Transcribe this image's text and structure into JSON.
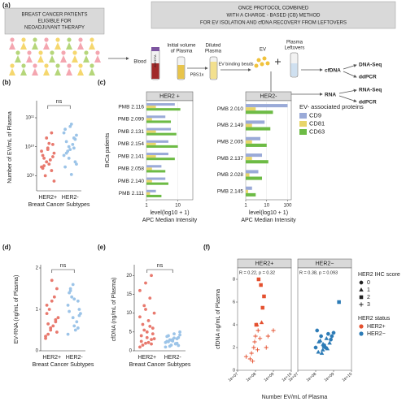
{
  "diagram": {
    "panel": "(a)",
    "patients_box": [
      "BREAST CANCER PATIENTS",
      "ELIGIBLE FOR",
      "NEOADJUVANT THERAPY"
    ],
    "protocol_box": [
      "ONCE PROTOCOL COMBINED",
      "WITH A CHARGE - BASED (CB) METHOD",
      "FOR EV ISOLATION AND cfDNA RECOVERY FROM LEFTOVERS"
    ],
    "tube_code": "K2EDTA",
    "labels": {
      "blood": "Blood",
      "plasma": [
        "Initial volume",
        "of Plasma"
      ],
      "diluted": [
        "Diluted",
        "Plasma"
      ],
      "pbs": "PBS1x",
      "beads": "EV binding beads",
      "ev": "EV",
      "leftovers": [
        "Plasma",
        "Leftovers"
      ]
    },
    "outputs": {
      "cfdna": "cfDNA",
      "dna_seq": "DNA-Seq",
      "ddpcr_dna": "ddPCR",
      "rna": "RNA",
      "rna_seq": "RNA-Seq",
      "ddpcr_rna": "ddPCR"
    }
  },
  "chart_data": [
    {
      "type": "strip",
      "panel": "(b)",
      "ylabel": "Number of EV/mL of Plasma",
      "xlabel": "Breast Cancer Subtypes",
      "annotation": "ns",
      "log_y": true,
      "categories": [
        "HER2+",
        "HER2-"
      ],
      "groups": [
        {
          "color": "#e8796e",
          "values": [
            2000000000.0,
            3000000000.0,
            1500000000.0,
            5000000000.0,
            8000000000.0,
            12000000000.0,
            4000000000.0,
            2500000000.0,
            6000000000.0,
            1000000000.0,
            3500000000.0,
            7000000000.0,
            20000000000.0,
            30000000000.0,
            1800000000.0,
            9000000000.0,
            4500000000.0,
            2200000000.0,
            13000000000.0,
            650000000.0
          ]
        },
        {
          "color": "#9cc4e8",
          "values": [
            5000000000.0,
            10000000000.0,
            20000000000.0,
            40000000000.0,
            8000000000.0,
            3000000000.0,
            15000000000.0,
            60000000000.0,
            2500000000.0,
            7000000000.0,
            12000000000.0,
            30000000000.0,
            4000000000.0,
            9000000000.0,
            2000000000.0,
            50000000000.0,
            18000000000.0,
            6000000000.0,
            1100000000.0,
            25000000000.0
          ]
        }
      ],
      "ylim": [
        300000000.0,
        300000000000.0
      ],
      "yticks": [
        {
          "value": 1000000000.0,
          "label": "10⁹"
        },
        {
          "value": 10000000000.0,
          "label": "10¹⁰"
        },
        {
          "value": 100000000000.0,
          "label": "10¹¹"
        }
      ]
    },
    {
      "type": "barh",
      "panel": "(c)",
      "ylabel": "BrCa patients",
      "xlabel": "level(log10 + 1)",
      "xlabel2": "APC Median Intensity",
      "legend_title": "EV- associated proteins",
      "log_x": true,
      "facets": [
        {
          "title": "HER2 +",
          "categories": [
            "PMB 2.116",
            "PMB 2.099",
            "PMB 2.131",
            "PMB 2.154",
            "PMB 2.141",
            "PMB 2.058",
            "PMB 2.140",
            "PMB 2.111"
          ],
          "xlim": [
            1,
            30
          ],
          "xticks": [
            1,
            10
          ],
          "series": [
            {
              "name": "CD9",
              "color": "#9aaad8",
              "values": [
                8,
                4,
                6,
                5,
                5,
                3,
                4,
                2
              ]
            },
            {
              "name": "CD81",
              "color": "#e8d56a",
              "values": [
                2,
                1.5,
                2,
                2,
                2,
                1.5,
                1.5,
                1.3
              ]
            },
            {
              "name": "CD63",
              "color": "#6dbb45",
              "values": [
                12,
                6,
                9,
                10,
                8,
                4,
                5,
                3
              ]
            }
          ]
        },
        {
          "title": "HER2-",
          "categories": [
            "PMB 2.010",
            "PMB 2.149",
            "PMB 2.005",
            "PMB 2.137",
            "PMB 2.028",
            "PMB 2.145"
          ],
          "xlim": [
            1,
            150
          ],
          "xticks": [
            1,
            10,
            100
          ],
          "series": [
            {
              "name": "CD9",
              "color": "#9aaad8",
              "values": [
                100,
                8,
                5,
                6,
                4,
                2
              ]
            },
            {
              "name": "CD81",
              "color": "#e8d56a",
              "values": [
                3,
                2,
                2,
                2,
                1.5,
                1.3
              ]
            },
            {
              "name": "CD63",
              "color": "#6dbb45",
              "values": [
                20,
                15,
                10,
                12,
                6,
                3
              ]
            }
          ]
        }
      ]
    },
    {
      "type": "strip",
      "panel": "(d)",
      "ylabel": "EV-RNA (ng/mL of Plasma)",
      "xlabel": "Breast Cancer Subtypes",
      "annotation": "ns",
      "log_y": false,
      "categories": [
        "HER2+",
        "HER2-"
      ],
      "groups": [
        {
          "color": "#e8796e",
          "values": [
            0.3,
            0.5,
            0.7,
            0.9,
            1.2,
            1.5,
            0.4,
            0.6,
            0.8,
            1.0,
            1.3,
            0.35,
            0.55,
            0.75,
            1.1,
            1.7,
            0.45,
            0.65
          ]
        },
        {
          "color": "#9cc4e8",
          "values": [
            0.4,
            0.8,
            1.2,
            1.4,
            0.6,
            1.0,
            1.5,
            0.5,
            0.9,
            1.3,
            0.7,
            1.1,
            1.6,
            0.55,
            0.95,
            1.25,
            0.85,
            1.45
          ]
        }
      ],
      "ylim": [
        0,
        2
      ],
      "yticks": [
        0,
        1,
        2
      ]
    },
    {
      "type": "strip",
      "panel": "(e)",
      "ylabel": "cfDNA (ng/mL of Plasma)",
      "xlabel": "Breast Cancer Subtypes",
      "annotation": "ns",
      "log_y": false,
      "categories": [
        "HER2+",
        "HER2-"
      ],
      "groups": [
        {
          "color": "#e8796e",
          "values": [
            1,
            2,
            3,
            4,
            5,
            6,
            7,
            8,
            10,
            12,
            14,
            16,
            18,
            20,
            2.5,
            3.5,
            4.5,
            1.5,
            2.2,
            3.2,
            5.5,
            6.5,
            9,
            11,
            1.8
          ]
        },
        {
          "color": "#9cc4e8",
          "values": [
            1,
            1.5,
            2,
            2.5,
            3,
            3.5,
            4,
            4.5,
            5,
            1.2,
            1.8,
            2.2,
            2.8,
            3.2,
            3.8,
            2.6,
            1.4,
            2.4,
            3.4,
            4.2,
            2.9,
            1.9
          ]
        }
      ],
      "ylim": [
        0,
        22
      ],
      "yticks": [
        0,
        5,
        10,
        15,
        20
      ]
    },
    {
      "type": "scatter",
      "panel": "(f)",
      "xlabel": "Number EV/mL of Plasma",
      "ylabel": "cfDNA ng/mL of Plasma",
      "log_x": true,
      "xlim": [
        10000000.0,
        10000000000.0
      ],
      "xticks": [
        {
          "value": 10000000.0,
          "label": "1e+07"
        },
        {
          "value": 100000000.0,
          "label": "1e+08"
        },
        {
          "value": 1000000000.0,
          "label": "1e+09"
        },
        {
          "value": 10000000000.0,
          "label": "1e+10"
        }
      ],
      "ylim": [
        0,
        9
      ],
      "yticks": [
        0,
        2,
        4,
        6,
        8
      ],
      "score_title": "HER2 IHC score",
      "score_levels": [
        0,
        1,
        2,
        3
      ],
      "status_title": "HER2 status",
      "facets": [
        {
          "title": "HER2+",
          "annotation": "R = 0.22, p = 0.32",
          "color": "#e4502f",
          "x": [
            50000000.0,
            80000000.0,
            100000000.0,
            120000000.0,
            150000000.0,
            200000000.0,
            300000000.0,
            60000000.0,
            90000000.0,
            110000000.0,
            140000000.0,
            250000000.0,
            400000000.0,
            70000000.0,
            130000000.0,
            180000000.0,
            500000000.0,
            1000000000.0,
            30000000.0,
            220000000.0
          ],
          "y": [
            1,
            2,
            3,
            4,
            8,
            7.5,
            6.5,
            1.5,
            2.5,
            4,
            3.5,
            5.5,
            2,
            0.8,
            1.8,
            2.8,
            3,
            3.5,
            1.2,
            4.2
          ],
          "score": [
            3,
            3,
            3,
            1,
            2,
            2,
            2,
            3,
            3,
            2,
            3,
            2,
            3,
            3,
            3,
            3,
            3,
            3,
            3,
            1
          ]
        },
        {
          "title": "HER2−",
          "annotation": "R = 0.38, p = 0.093",
          "color": "#2c7bb6",
          "x": [
            100000000.0,
            150000000.0,
            200000000.0,
            250000000.0,
            300000000.0,
            400000000.0,
            500000000.0,
            120000000.0,
            180000000.0,
            220000000.0,
            350000000.0,
            600000000.0,
            800000000.0,
            140000000.0,
            280000000.0,
            450000000.0,
            700000000.0,
            1000000000.0,
            2000000000.0,
            260000000.0
          ],
          "y": [
            2,
            2.5,
            3,
            1.8,
            2.2,
            2.8,
            3.2,
            3.5,
            2.6,
            1.5,
            2,
            2.4,
            3,
            1.6,
            2.1,
            1.9,
            2.7,
            3.3,
            6,
            2.3
          ],
          "score": [
            0,
            1,
            0,
            1,
            0,
            1,
            0,
            0,
            1,
            1,
            0,
            1,
            0,
            1,
            0,
            1,
            0,
            0,
            2,
            1
          ]
        }
      ]
    }
  ]
}
